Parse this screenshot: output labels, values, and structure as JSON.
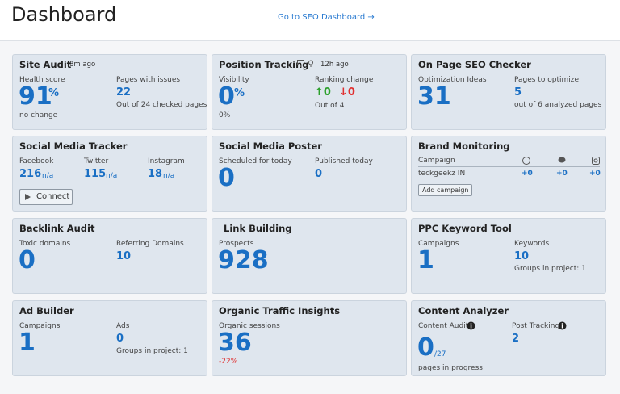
{
  "header": {
    "title": "Dashboard",
    "link": "Go to SEO Dashboard →"
  },
  "cards": [
    {
      "title": "Site Audit",
      "meta": "8m ago",
      "left": {
        "label": "Health score",
        "value": "91",
        "unit": "%",
        "note": "no change"
      },
      "right": {
        "label": "Pages with issues",
        "value": "22",
        "note": "Out of 24 checked pages"
      }
    },
    {
      "title": "Position Tracking",
      "meta": "12h ago",
      "left": {
        "label": "Visibility",
        "value": "0",
        "unit": "%",
        "note": "0%"
      },
      "right": {
        "label": "Ranking change",
        "up": "↑0",
        "down": "↓0",
        "note": "Out of 4"
      }
    },
    {
      "title": "On Page SEO Checker",
      "left": {
        "label": "Optimization Ideas",
        "value": "31"
      },
      "right": {
        "label": "Pages to optimize",
        "value": "5",
        "note": "out of 6 analyzed pages"
      }
    },
    {
      "title": "Social Media Tracker",
      "columns": [
        {
          "label": "Facebook",
          "value": "216",
          "unit": "n/a"
        },
        {
          "label": "Twitter",
          "value": "115",
          "unit": "n/a"
        },
        {
          "label": "Instagram",
          "value": "18",
          "unit": "n/a"
        }
      ],
      "button": "Connect"
    },
    {
      "title": "Social Media Poster",
      "left": {
        "label": "Scheduled for today",
        "value": "0"
      },
      "right": {
        "label": "Published today",
        "value": "0"
      }
    },
    {
      "title": "Brand Monitoring",
      "column": "Campaign",
      "row": {
        "name": "teckgeekz IN",
        "values": [
          "+0",
          "+0",
          "+0"
        ]
      },
      "button": "Add campaign"
    },
    {
      "title": "Backlink Audit",
      "left": {
        "label": "Toxic domains",
        "value": "0"
      },
      "right": {
        "label": "Referring Domains",
        "value": "10"
      }
    },
    {
      "title": "Link Building",
      "left": {
        "label": "Prospects",
        "value": "928"
      }
    },
    {
      "title": "PPC Keyword Tool",
      "left": {
        "label": "Campaigns",
        "value": "1"
      },
      "right": {
        "label": "Keywords",
        "value": "10",
        "note": "Groups in project: 1"
      }
    },
    {
      "title": "Ad Builder",
      "left": {
        "label": "Campaigns",
        "value": "1"
      },
      "right": {
        "label": "Ads",
        "value": "0",
        "note": "Groups in project: 1"
      }
    },
    {
      "title": "Organic Traffic Insights",
      "left": {
        "label": "Organic sessions",
        "value": "36",
        "note": "-22%"
      }
    },
    {
      "title": "Content Analyzer",
      "left": {
        "label": "Content Audit",
        "value": "0",
        "unit": "/27",
        "note": "pages in progress"
      },
      "right": {
        "label": "Post Tracking",
        "value": "2"
      }
    }
  ]
}
